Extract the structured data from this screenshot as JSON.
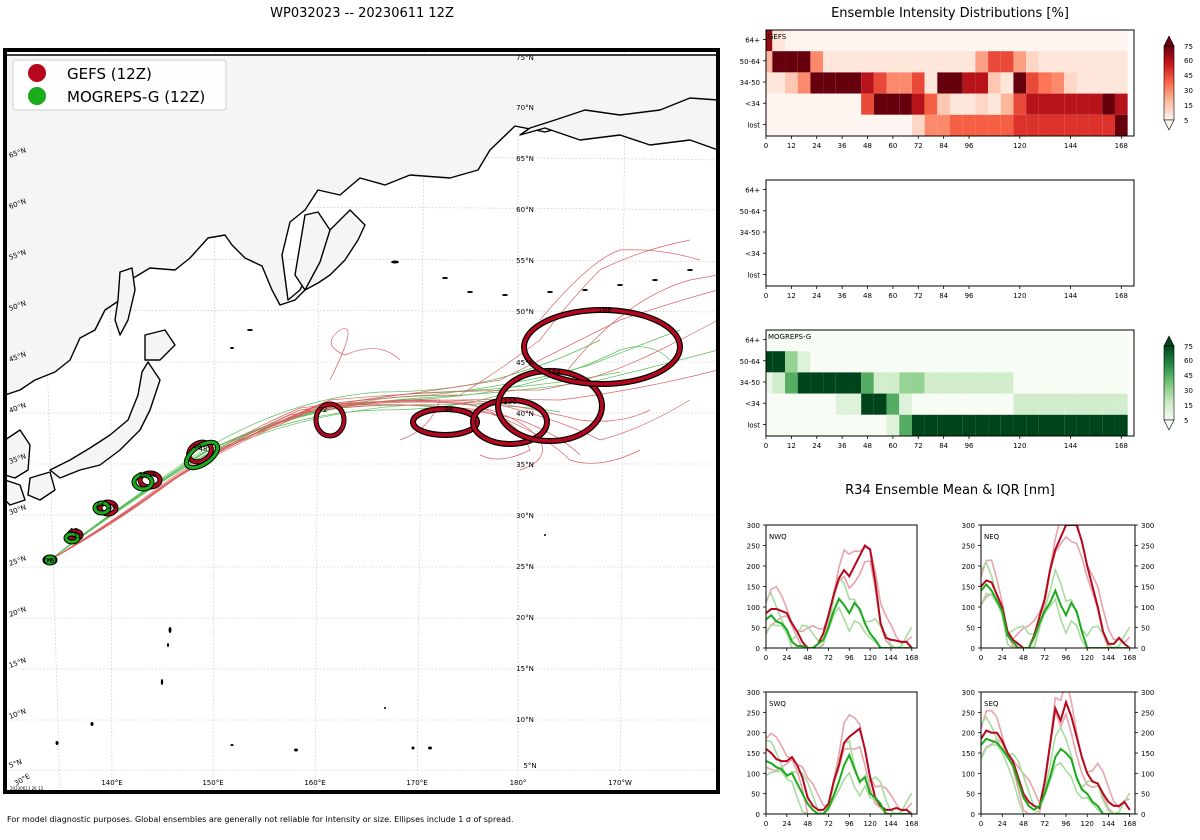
{
  "map": {
    "title": "WP032023 -- 20230611 12Z",
    "legend": [
      {
        "label": "GEFS (12Z)",
        "color": "#b5081e"
      },
      {
        "label": "MOGREPS-G (12Z)",
        "color": "#1aab1a"
      }
    ],
    "lat_labels_right": [
      "75°N",
      "70°N",
      "65°N",
      "60°N",
      "55°N",
      "50°N",
      "45°N",
      "40°N",
      "35°N",
      "30°N",
      "25°N",
      "20°N",
      "15°N",
      "10°N",
      "5°N"
    ],
    "lat_labels_left": [
      "65°N",
      "60°N",
      "55°N",
      "50°N",
      "45°N",
      "40°N",
      "35°N",
      "30°N",
      "25°N",
      "20°N",
      "15°N",
      "10°N",
      "5°N"
    ],
    "lon_labels": [
      "140°E",
      "150°E",
      "160°E",
      "170°E",
      "180°",
      "170°W"
    ],
    "corner_label": "30°E",
    "stamp": "20230611 26 13",
    "footnote": "For model diagnostic purposes. Global ensembles are generally not reliable for intensity or size. Ellipses include 1 σ of spread.",
    "gefs_ellipse_labels": [
      "0",
      "12",
      "24",
      "36",
      "48",
      "72",
      "96",
      "120",
      "144",
      "168"
    ],
    "mog_ellipse_labels": [
      "0",
      "12",
      "24",
      "36",
      "48"
    ]
  },
  "intensity": {
    "title": "Ensemble Intensity Distributions [%]",
    "categories": [
      "64+",
      "50-64",
      "34-50",
      "<34",
      "lost"
    ],
    "x_ticks": [
      "0",
      "12",
      "24",
      "36",
      "48",
      "60",
      "72",
      "84",
      "96",
      "120",
      "144",
      "168"
    ],
    "colorbar_ticks": [
      "75",
      "60",
      "45",
      "30",
      "15",
      "5"
    ],
    "panels": [
      {
        "name": "GEFS",
        "colormap": "Reds"
      },
      {
        "name": "",
        "colormap": "none"
      },
      {
        "name": "MOGREPS-G",
        "colormap": "Greens"
      }
    ]
  },
  "r34": {
    "title": "R34 Ensemble Mean & IQR [nm]",
    "quadrants": [
      "NWQ",
      "NEQ",
      "SWQ",
      "SEQ"
    ],
    "y_ticks": [
      "0",
      "50",
      "100",
      "150",
      "200",
      "250",
      "300"
    ],
    "x_ticks": [
      "0",
      "24",
      "48",
      "72",
      "96",
      "120",
      "144",
      "168"
    ]
  },
  "chart_data": [
    {
      "type": "heatmap",
      "title": "GEFS",
      "y_categories": [
        "64+",
        "50-64",
        "34-50",
        "<34",
        "lost"
      ],
      "x": [
        0,
        6,
        12,
        18,
        24,
        30,
        36,
        42,
        48,
        54,
        60,
        66,
        72,
        78,
        84,
        90,
        96,
        102,
        108,
        114,
        120,
        126,
        132,
        138,
        144,
        150,
        156,
        162,
        168
      ],
      "values_percent": [
        [
          67,
          5,
          0,
          0,
          0,
          0,
          0,
          0,
          0,
          0,
          0,
          0,
          0,
          0,
          0,
          0,
          0,
          0,
          0,
          0,
          0,
          0,
          0,
          0,
          0,
          0,
          0,
          0,
          0
        ],
        [
          20,
          76,
          76,
          76,
          30,
          5,
          5,
          5,
          5,
          5,
          5,
          5,
          5,
          5,
          5,
          5,
          5,
          25,
          45,
          45,
          25,
          10,
          5,
          5,
          5,
          5,
          5,
          5,
          5
        ],
        [
          5,
          5,
          15,
          30,
          76,
          76,
          76,
          76,
          60,
          45,
          30,
          30,
          45,
          5,
          76,
          76,
          60,
          60,
          15,
          5,
          76,
          45,
          35,
          30,
          10,
          5,
          5,
          5,
          5
        ],
        [
          0,
          0,
          0,
          0,
          0,
          0,
          0,
          0,
          45,
          76,
          76,
          76,
          60,
          40,
          15,
          5,
          5,
          10,
          5,
          20,
          45,
          60,
          60,
          60,
          60,
          60,
          60,
          76,
          60
        ],
        [
          0,
          0,
          0,
          0,
          0,
          0,
          0,
          0,
          0,
          0,
          0,
          0,
          10,
          30,
          30,
          40,
          40,
          40,
          40,
          40,
          50,
          50,
          50,
          50,
          50,
          50,
          50,
          50,
          75
        ]
      ]
    },
    {
      "type": "heatmap",
      "title": "MOGREPS-G",
      "y_categories": [
        "64+",
        "50-64",
        "34-50",
        "<34",
        "lost"
      ],
      "x": [
        0,
        6,
        12,
        18,
        24,
        30,
        36,
        42,
        48,
        54,
        60,
        66,
        72,
        78,
        84,
        90,
        96,
        102,
        108,
        114,
        120,
        126,
        132,
        138,
        144,
        150,
        156,
        162,
        168
      ],
      "values_percent": [
        [
          0,
          0,
          0,
          0,
          0,
          0,
          0,
          0,
          0,
          0,
          0,
          0,
          0,
          0,
          0,
          0,
          0,
          0,
          0,
          0,
          0,
          0,
          0,
          0,
          0,
          0,
          0,
          0,
          0
        ],
        [
          76,
          76,
          30,
          10,
          0,
          0,
          0,
          0,
          0,
          0,
          0,
          0,
          0,
          0,
          0,
          0,
          0,
          0,
          0,
          0,
          0,
          0,
          0,
          0,
          0,
          0,
          0,
          0,
          0
        ],
        [
          5,
          15,
          45,
          76,
          76,
          76,
          76,
          76,
          45,
          15,
          15,
          30,
          30,
          15,
          15,
          15,
          15,
          15,
          15,
          15,
          0,
          0,
          0,
          0,
          0,
          0,
          0,
          0,
          0
        ],
        [
          0,
          0,
          0,
          0,
          0,
          0,
          10,
          10,
          76,
          76,
          45,
          10,
          0,
          0,
          0,
          0,
          0,
          0,
          0,
          0,
          15,
          15,
          15,
          15,
          15,
          15,
          15,
          15,
          15
        ],
        [
          0,
          0,
          0,
          0,
          0,
          0,
          0,
          0,
          0,
          0,
          10,
          45,
          76,
          76,
          76,
          76,
          76,
          76,
          76,
          76,
          76,
          76,
          76,
          76,
          76,
          76,
          76,
          76,
          76
        ]
      ]
    },
    {
      "type": "line",
      "title": "NWQ",
      "x": [
        0,
        6,
        12,
        18,
        24,
        30,
        36,
        42,
        48,
        54,
        60,
        66,
        72,
        78,
        84,
        90,
        96,
        102,
        108,
        114,
        120,
        126,
        132,
        138,
        144,
        150,
        156,
        162,
        168
      ],
      "ylim": [
        0,
        300
      ],
      "series": [
        {
          "name": "GEFS",
          "values": [
            85,
            95,
            95,
            90,
            85,
            60,
            40,
            15,
            0,
            0,
            10,
            35,
            80,
            130,
            170,
            190,
            175,
            200,
            225,
            250,
            240,
            160,
            60,
            25,
            20,
            18,
            15,
            15,
            0
          ]
        },
        {
          "name": "MOGREPS-G",
          "values": [
            70,
            80,
            65,
            60,
            45,
            15,
            5,
            5,
            0,
            0,
            10,
            20,
            50,
            90,
            120,
            105,
            85,
            110,
            95,
            60,
            35,
            20,
            0,
            0,
            0,
            0,
            0,
            0,
            0
          ]
        }
      ]
    },
    {
      "type": "line",
      "title": "NEQ",
      "x": [
        0,
        6,
        12,
        18,
        24,
        30,
        36,
        42,
        48,
        54,
        60,
        66,
        72,
        78,
        84,
        90,
        96,
        102,
        108,
        114,
        120,
        126,
        132,
        138,
        144,
        150,
        156,
        162,
        168
      ],
      "ylim": [
        0,
        300
      ],
      "series": [
        {
          "name": "GEFS",
          "values": [
            150,
            165,
            160,
            130,
            100,
            40,
            20,
            10,
            0,
            0,
            30,
            75,
            120,
            190,
            240,
            270,
            300,
            300,
            300,
            260,
            200,
            150,
            100,
            40,
            10,
            10,
            25,
            10,
            0
          ]
        },
        {
          "name": "MOGREPS-G",
          "values": [
            140,
            155,
            140,
            115,
            90,
            30,
            15,
            0,
            0,
            0,
            25,
            60,
            90,
            110,
            140,
            105,
            80,
            110,
            90,
            40,
            0,
            0,
            0,
            0,
            0,
            0,
            0,
            0,
            0
          ]
        }
      ]
    },
    {
      "type": "line",
      "title": "SWQ",
      "x": [
        0,
        6,
        12,
        18,
        24,
        30,
        36,
        42,
        48,
        54,
        60,
        66,
        72,
        78,
        84,
        90,
        96,
        102,
        108,
        114,
        120,
        126,
        132,
        138,
        144,
        150,
        156,
        162,
        168
      ],
      "ylim": [
        0,
        300
      ],
      "series": [
        {
          "name": "GEFS",
          "values": [
            160,
            150,
            135,
            130,
            130,
            140,
            120,
            90,
            40,
            20,
            10,
            10,
            25,
            80,
            120,
            175,
            190,
            200,
            210,
            160,
            90,
            40,
            20,
            10,
            10,
            15,
            10,
            10,
            0
          ]
        },
        {
          "name": "MOGREPS-G",
          "values": [
            130,
            125,
            115,
            110,
            95,
            100,
            75,
            50,
            25,
            10,
            0,
            0,
            15,
            45,
            80,
            120,
            145,
            110,
            80,
            90,
            50,
            40,
            25,
            0,
            0,
            0,
            0,
            0,
            0
          ]
        }
      ]
    },
    {
      "type": "line",
      "title": "SEQ",
      "x": [
        0,
        6,
        12,
        18,
        24,
        30,
        36,
        42,
        48,
        54,
        60,
        66,
        72,
        78,
        84,
        90,
        96,
        102,
        108,
        114,
        120,
        126,
        132,
        138,
        144,
        150,
        156,
        162,
        168
      ],
      "ylim": [
        0,
        300
      ],
      "series": [
        {
          "name": "GEFS",
          "values": [
            185,
            205,
            200,
            200,
            180,
            150,
            130,
            90,
            50,
            30,
            20,
            15,
            80,
            170,
            260,
            230,
            275,
            240,
            190,
            140,
            100,
            80,
            75,
            50,
            30,
            20,
            20,
            30,
            10
          ]
        },
        {
          "name": "MOGREPS-G",
          "values": [
            170,
            185,
            180,
            175,
            160,
            140,
            120,
            80,
            40,
            20,
            10,
            20,
            50,
            90,
            140,
            160,
            150,
            135,
            90,
            60,
            50,
            30,
            20,
            0,
            0,
            0,
            0,
            0,
            0
          ]
        }
      ]
    }
  ]
}
